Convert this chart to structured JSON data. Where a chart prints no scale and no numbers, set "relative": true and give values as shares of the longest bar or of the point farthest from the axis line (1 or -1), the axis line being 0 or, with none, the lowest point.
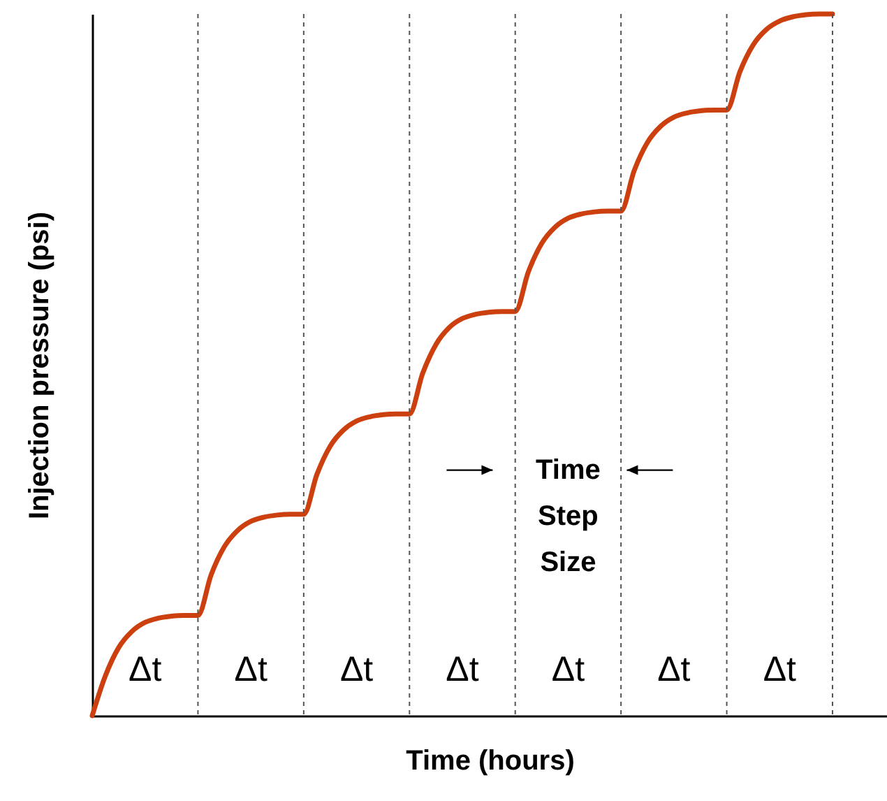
{
  "chart_data": {
    "type": "line",
    "xlabel": "Time (hours)",
    "ylabel": "Injection pressure (psi)",
    "relative": true,
    "tick_labels": false,
    "grid": "x",
    "marker": "none",
    "line_style": "solid",
    "categories": [
      null,
      null,
      null,
      null,
      null,
      null,
      null,
      null,
      null,
      null,
      null,
      null,
      null,
      null,
      null,
      null,
      null,
      null,
      null,
      null,
      null,
      null,
      null,
      null,
      null,
      null,
      null,
      null,
      null,
      null,
      null,
      null,
      null,
      null,
      null,
      null,
      null,
      null,
      null,
      null,
      null,
      null,
      null,
      null,
      null,
      null,
      null,
      null,
      null,
      null,
      null,
      null,
      null,
      null,
      null,
      null,
      null
    ],
    "series": [
      {
        "color": "#cc4010",
        "values": [
          0,
          0.057,
          0.097,
          0.12,
          0.133,
          0.139,
          0.142,
          0.143,
          0.143,
          0.201,
          0.241,
          0.264,
          0.277,
          0.283,
          0.286,
          0.287,
          0.287,
          0.344,
          0.384,
          0.407,
          0.42,
          0.426,
          0.429,
          0.43,
          0.43,
          0.488,
          0.529,
          0.553,
          0.566,
          0.572,
          0.575,
          0.576,
          0.576,
          0.633,
          0.673,
          0.696,
          0.709,
          0.715,
          0.718,
          0.719,
          0.719,
          0.777,
          0.817,
          0.84,
          0.853,
          0.859,
          0.862,
          0.863,
          0.863,
          0.918,
          0.956,
          0.978,
          0.99,
          0.996,
          0.999,
          1,
          1
        ]
      }
    ],
    "annotations": [
      "Δt",
      "Δt",
      "Δt",
      "Δt",
      "Δt",
      "Δt",
      "Δt",
      "Time Step Size"
    ]
  }
}
